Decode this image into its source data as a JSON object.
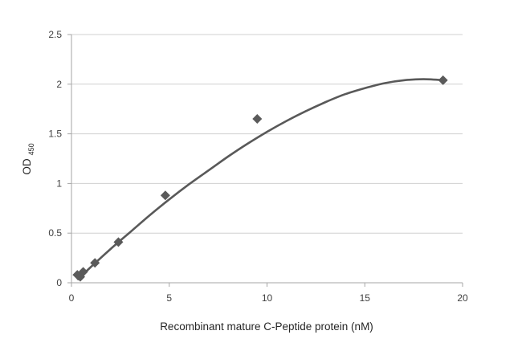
{
  "chart_data": {
    "type": "scatter",
    "title": "",
    "xlabel": "Recombinant mature C-Peptide protein (nM)",
    "ylabel": "OD",
    "ylabel_sub": "450",
    "xlim": [
      0,
      20
    ],
    "ylim": [
      0,
      2.5
    ],
    "xticks": [
      0,
      5,
      10,
      15,
      20
    ],
    "yticks": [
      0,
      0.5,
      1,
      1.5,
      2,
      2.5
    ],
    "xtick_labels": [
      "0",
      "5",
      "10",
      "15",
      "20"
    ],
    "ytick_labels": [
      "0",
      "0.5",
      "1",
      "1.5",
      "2",
      "2.5"
    ],
    "grid": "horizontal",
    "legend": "none",
    "marker_color": "#5a5a5a",
    "line_color": "#595959",
    "series": [
      {
        "marker": "diamond",
        "x": [
          0.3,
          0.45,
          0.6,
          1.2,
          2.4,
          4.8,
          9.5,
          19
        ],
        "y": [
          0.08,
          0.06,
          0.11,
          0.2,
          0.41,
          0.88,
          1.65,
          2.04
        ]
      }
    ],
    "trendline": {
      "type": "polynomial",
      "x": [
        0.3,
        1,
        2,
        3,
        4,
        5,
        6,
        7,
        8,
        9,
        10,
        11,
        12,
        13,
        14,
        15,
        16,
        17,
        18,
        19
      ],
      "y": [
        0.03,
        0.16,
        0.34,
        0.51,
        0.68,
        0.84,
        0.99,
        1.13,
        1.27,
        1.4,
        1.52,
        1.63,
        1.73,
        1.82,
        1.9,
        1.96,
        2.01,
        2.04,
        2.05,
        2.04
      ]
    }
  }
}
